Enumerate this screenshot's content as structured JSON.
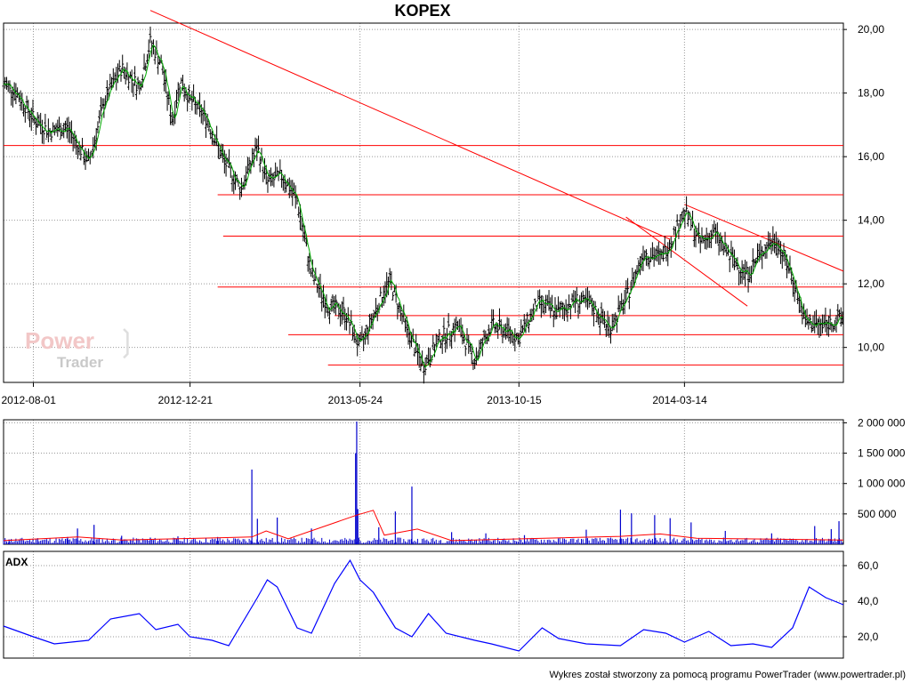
{
  "header": {
    "title": "KOPEX"
  },
  "footer": {
    "credit": "Wykres został stworzony za pomocą programu PowerTrader (www.powertrader.pl)"
  },
  "watermark": {
    "line1": "Power",
    "line2": "Trader"
  },
  "colors": {
    "price": "#000000",
    "average": "#00aa00",
    "trendline": "#ff0000",
    "volume": "#0000cc",
    "volume_average": "#ff0000",
    "adx": "#0000ff",
    "grid": "#999999"
  },
  "chart_data": [
    {
      "name": "price",
      "type": "ohlc",
      "title": "KOPEX",
      "x_ticks": [
        "2012-08-01",
        "2012-12-21",
        "2013-05-24",
        "2013-10-15",
        "2014-03-14"
      ],
      "y_ticks": [
        "10,00",
        "12,00",
        "14,00",
        "16,00",
        "18,00",
        "20,00"
      ],
      "ylim": [
        8.9,
        20.2
      ],
      "x_range": [
        "2012-07-05",
        "2014-08-05"
      ],
      "grid": true,
      "series": [
        {
          "name": "close",
          "points": [
            [
              "2012-07-05",
              18.3
            ],
            [
              "2012-07-15",
              18.1
            ],
            [
              "2012-08-01",
              17.2
            ],
            [
              "2012-08-15",
              16.8
            ],
            [
              "2012-09-01",
              16.9
            ],
            [
              "2012-09-20",
              15.8
            ],
            [
              "2012-10-05",
              17.8
            ],
            [
              "2012-10-20",
              18.8
            ],
            [
              "2012-11-05",
              18.2
            ],
            [
              "2012-11-15",
              19.6
            ],
            [
              "2012-11-25",
              18.9
            ],
            [
              "2012-12-05",
              17.1
            ],
            [
              "2012-12-12",
              18.4
            ],
            [
              "2012-12-21",
              17.8
            ],
            [
              "2013-01-05",
              17.2
            ],
            [
              "2013-01-20",
              15.9
            ],
            [
              "2013-02-05",
              15.0
            ],
            [
              "2013-02-20",
              16.3
            ],
            [
              "2013-03-01",
              15.2
            ],
            [
              "2013-03-15",
              15.4
            ],
            [
              "2013-03-28",
              14.6
            ],
            [
              "2013-04-10",
              12.3
            ],
            [
              "2013-04-25",
              11.3
            ],
            [
              "2013-05-10",
              11.1
            ],
            [
              "2013-05-24",
              10.0
            ],
            [
              "2013-06-10",
              11.4
            ],
            [
              "2013-06-20",
              12.1
            ],
            [
              "2013-07-05",
              10.6
            ],
            [
              "2013-07-20",
              9.4
            ],
            [
              "2013-08-05",
              10.3
            ],
            [
              "2013-08-20",
              10.7
            ],
            [
              "2013-09-05",
              9.6
            ],
            [
              "2013-09-20",
              10.7
            ],
            [
              "2013-10-05",
              10.5
            ],
            [
              "2013-10-15",
              10.3
            ],
            [
              "2013-11-01",
              11.4
            ],
            [
              "2013-11-20",
              11.1
            ],
            [
              "2013-12-05",
              11.5
            ],
            [
              "2013-12-20",
              11.3
            ],
            [
              "2014-01-05",
              10.6
            ],
            [
              "2014-01-20",
              11.5
            ],
            [
              "2014-02-05",
              13.0
            ],
            [
              "2014-02-20",
              12.8
            ],
            [
              "2014-03-01",
              13.3
            ],
            [
              "2014-03-14",
              14.3
            ],
            [
              "2014-03-28",
              13.3
            ],
            [
              "2014-04-10",
              13.6
            ],
            [
              "2014-04-25",
              12.8
            ],
            [
              "2014-05-10",
              12.3
            ],
            [
              "2014-05-25",
              13.1
            ],
            [
              "2014-06-05",
              13.4
            ],
            [
              "2014-06-20",
              12.2
            ],
            [
              "2014-07-01",
              10.8
            ],
            [
              "2014-07-15",
              10.7
            ],
            [
              "2014-08-05",
              10.9
            ]
          ]
        }
      ],
      "trendlines": [
        {
          "from": [
            "2012-11-15",
            20.6
          ],
          "to": [
            "2014-03-01",
            13.4
          ]
        },
        {
          "from": [
            "2014-03-14",
            14.5
          ],
          "to": [
            "2014-08-05",
            12.4
          ]
        },
        {
          "from": [
            "2014-01-20",
            14.1
          ],
          "to": [
            "2014-05-10",
            11.3
          ]
        }
      ],
      "levels": [
        {
          "y": 16.35,
          "from": "2012-07-05"
        },
        {
          "y": 14.8,
          "from": "2013-01-15"
        },
        {
          "y": 13.5,
          "from": "2013-01-20"
        },
        {
          "y": 11.9,
          "from": "2013-01-15"
        },
        {
          "y": 11.0,
          "from": "2013-05-01"
        },
        {
          "y": 10.4,
          "from": "2013-03-20"
        },
        {
          "y": 9.45,
          "from": "2013-04-25"
        }
      ]
    },
    {
      "name": "volume",
      "type": "bar",
      "y_ticks": [
        "500 000",
        "1 000 000",
        "1 500 000",
        "2 000 000"
      ],
      "ylim": [
        0,
        2050000
      ],
      "grid": true,
      "series": [
        {
          "name": "volume",
          "points": [
            [
              "2012-07-10",
              80000
            ],
            [
              "2012-08-05",
              100000
            ],
            [
              "2012-09-01",
              120000
            ],
            [
              "2012-09-10",
              260000
            ],
            [
              "2012-09-25",
              320000
            ],
            [
              "2012-10-20",
              140000
            ],
            [
              "2012-11-15",
              110000
            ],
            [
              "2012-12-10",
              130000
            ],
            [
              "2013-01-15",
              120000
            ],
            [
              "2013-02-15",
              1230000
            ],
            [
              "2013-02-20",
              420000
            ],
            [
              "2013-03-10",
              440000
            ],
            [
              "2013-04-10",
              260000
            ],
            [
              "2013-05-20",
              1500000
            ],
            [
              "2013-05-21",
              2020000
            ],
            [
              "2013-05-22",
              580000
            ],
            [
              "2013-06-10",
              280000
            ],
            [
              "2013-06-25",
              540000
            ],
            [
              "2013-07-10",
              950000
            ],
            [
              "2013-08-15",
              200000
            ],
            [
              "2013-09-15",
              180000
            ],
            [
              "2013-10-20",
              150000
            ],
            [
              "2013-12-15",
              240000
            ],
            [
              "2014-01-15",
              570000
            ],
            [
              "2014-01-25",
              510000
            ],
            [
              "2014-02-15",
              480000
            ],
            [
              "2014-03-01",
              430000
            ],
            [
              "2014-03-20",
              360000
            ],
            [
              "2014-04-20",
              220000
            ],
            [
              "2014-06-01",
              180000
            ],
            [
              "2014-07-10",
              300000
            ],
            [
              "2014-07-25",
              250000
            ],
            [
              "2014-08-01",
              380000
            ]
          ]
        },
        {
          "name": "average",
          "points": [
            [
              "2012-07-05",
              60000
            ],
            [
              "2012-09-10",
              120000
            ],
            [
              "2012-10-20",
              70000
            ],
            [
              "2013-02-15",
              120000
            ],
            [
              "2013-02-28",
              220000
            ],
            [
              "2013-03-20",
              90000
            ],
            [
              "2013-05-21",
              480000
            ],
            [
              "2013-06-05",
              560000
            ],
            [
              "2013-06-15",
              150000
            ],
            [
              "2013-07-15",
              250000
            ],
            [
              "2013-08-15",
              60000
            ],
            [
              "2014-01-15",
              130000
            ],
            [
              "2014-02-20",
              170000
            ],
            [
              "2014-03-25",
              100000
            ],
            [
              "2014-08-05",
              70000
            ]
          ]
        }
      ]
    },
    {
      "name": "ADX",
      "type": "line",
      "title": "ADX",
      "y_ticks": [
        "20,0",
        "40,0",
        "60,0"
      ],
      "ylim": [
        8,
        68
      ],
      "grid": true,
      "series": [
        {
          "name": "ADX",
          "points": [
            [
              "2012-07-05",
              26
            ],
            [
              "2012-08-01",
              20
            ],
            [
              "2012-08-20",
              16
            ],
            [
              "2012-09-20",
              18
            ],
            [
              "2012-10-10",
              30
            ],
            [
              "2012-11-05",
              33
            ],
            [
              "2012-11-20",
              24
            ],
            [
              "2012-12-10",
              27
            ],
            [
              "2012-12-21",
              20
            ],
            [
              "2013-01-10",
              18
            ],
            [
              "2013-01-25",
              15
            ],
            [
              "2013-02-20",
              42
            ],
            [
              "2013-03-01",
              52
            ],
            [
              "2013-03-10",
              48
            ],
            [
              "2013-03-28",
              25
            ],
            [
              "2013-04-10",
              22
            ],
            [
              "2013-05-01",
              50
            ],
            [
              "2013-05-15",
              63
            ],
            [
              "2013-05-24",
              52
            ],
            [
              "2013-06-05",
              45
            ],
            [
              "2013-06-25",
              25
            ],
            [
              "2013-07-10",
              20
            ],
            [
              "2013-07-25",
              33
            ],
            [
              "2013-08-10",
              22
            ],
            [
              "2013-09-05",
              18
            ],
            [
              "2013-09-20",
              16
            ],
            [
              "2013-10-15",
              12
            ],
            [
              "2013-11-05",
              25
            ],
            [
              "2013-11-20",
              19
            ],
            [
              "2013-12-15",
              16
            ],
            [
              "2014-01-15",
              15
            ],
            [
              "2014-02-05",
              24
            ],
            [
              "2014-02-25",
              22
            ],
            [
              "2014-03-14",
              17
            ],
            [
              "2014-04-05",
              23
            ],
            [
              "2014-04-25",
              15
            ],
            [
              "2014-05-15",
              16
            ],
            [
              "2014-06-01",
              14
            ],
            [
              "2014-06-20",
              25
            ],
            [
              "2014-07-05",
              48
            ],
            [
              "2014-07-20",
              42
            ],
            [
              "2014-08-05",
              38
            ]
          ]
        }
      ]
    }
  ]
}
